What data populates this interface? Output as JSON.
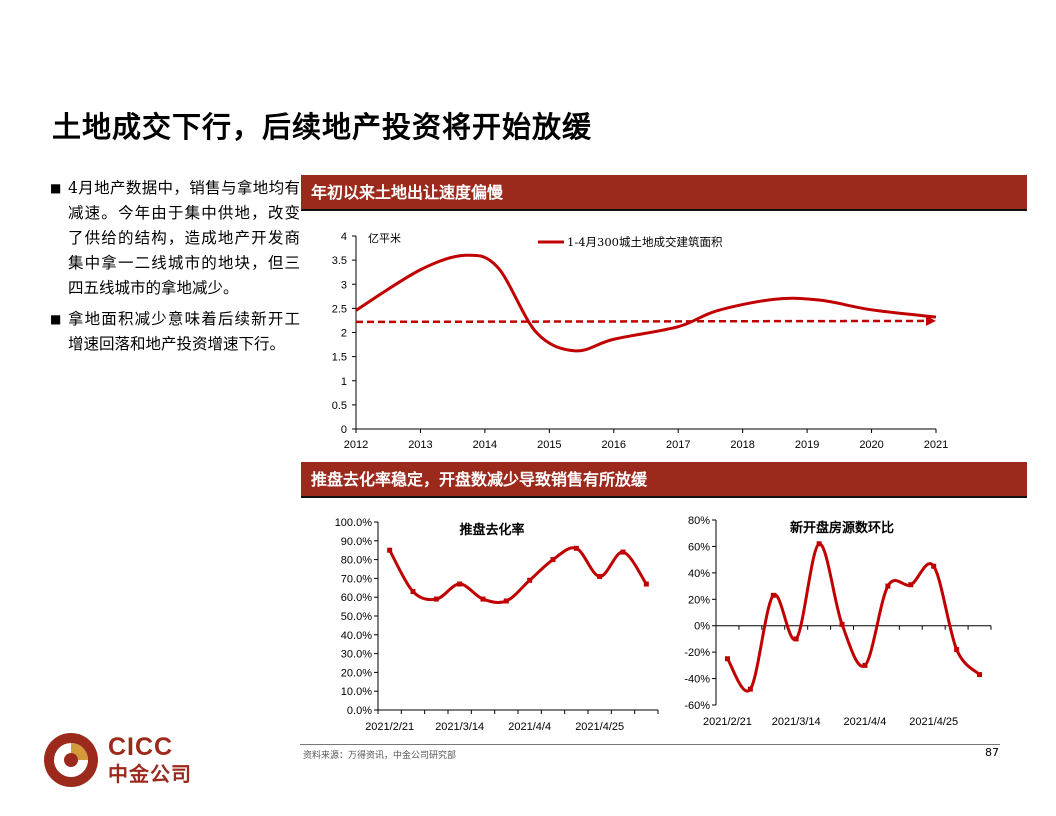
{
  "page": {
    "title": "土地成交下行，后续地产投资将开始放缓",
    "bullets": [
      "4月地产数据中，销售与拿地均有减速。今年由于集中供地，改变了供给的结构，造成地产开发商集中拿一二线城市的地块，但三四五线城市的拿地减少。",
      "拿地面积减少意味着后续新开工增速回落和地产投资增速下行。"
    ],
    "banner1": "年初以来土地出让速度偏慢",
    "banner2": "推盘去化率稳定，开盘数减少导致销售有所放缓",
    "source": "资料来源：万得资讯，中金公司研究部",
    "page_number": "87",
    "logo_en": "CICC",
    "logo_cn": "中金公司"
  },
  "colors": {
    "accent": "#9b2a1d",
    "series": "#c00000"
  },
  "chart_data": [
    {
      "type": "line",
      "title": "",
      "ylabel": "亿平米",
      "ylim": [
        0,
        4
      ],
      "yticks": [
        "0",
        "0.5",
        "1",
        "1.5",
        "2",
        "2.5",
        "3",
        "3.5",
        "4"
      ],
      "xlim": [
        2012,
        2021
      ],
      "xticks": [
        "2012",
        "2013",
        "2014",
        "2015",
        "2016",
        "2017",
        "2018",
        "2019",
        "2020",
        "2021"
      ],
      "legend": "top-center",
      "series": [
        {
          "name": "1-4月300城土地成交建筑面积",
          "x": [
            2012,
            2013,
            2013.7,
            2014.2,
            2014.8,
            2015.4,
            2016,
            2017,
            2017.6,
            2018.5,
            2019.2,
            2020,
            2021
          ],
          "y": [
            2.46,
            3.3,
            3.6,
            3.35,
            2.0,
            1.62,
            1.86,
            2.12,
            2.45,
            2.69,
            2.67,
            2.47,
            2.32
          ]
        }
      ],
      "annotations": [
        {
          "type": "dashed-arrow",
          "from": [
            2012,
            2.22
          ],
          "to": [
            2021,
            2.24
          ]
        }
      ]
    },
    {
      "type": "line",
      "title": "推盘去化率",
      "ylim": [
        0,
        100
      ],
      "yticks": [
        "0.0%",
        "10.0%",
        "20.0%",
        "30.0%",
        "40.0%",
        "50.0%",
        "60.0%",
        "70.0%",
        "80.0%",
        "90.0%",
        "100.0%"
      ],
      "xticks": [
        "2021/2/21",
        "2021/3/14",
        "2021/4/4",
        "2021/4/25"
      ],
      "grid": false,
      "series": [
        {
          "values": [
            85,
            63,
            59,
            67,
            59,
            58,
            69,
            80,
            86,
            71,
            84,
            67
          ]
        }
      ]
    },
    {
      "type": "line",
      "title": "新开盘房源数环比",
      "ylim": [
        -60,
        80
      ],
      "yticks": [
        "-60%",
        "-40%",
        "-20%",
        "0%",
        "20%",
        "40%",
        "60%",
        "80%"
      ],
      "xticks": [
        "2021/2/21",
        "2021/3/14",
        "2021/4/4",
        "2021/4/25"
      ],
      "grid": false,
      "series": [
        {
          "values": [
            -25,
            -48,
            23,
            -10,
            62,
            1,
            -30,
            30,
            31,
            45,
            -18,
            -37
          ]
        }
      ]
    }
  ]
}
